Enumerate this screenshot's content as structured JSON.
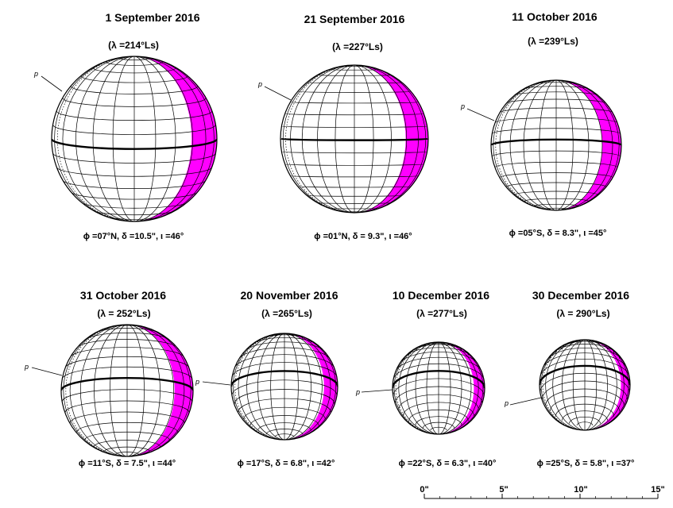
{
  "panels": [
    {
      "date": "1 September 2016",
      "ls": "(λ =214°Ls)",
      "params": "ϕ =07°N,  δ =10.5\",  ι =46°",
      "p_label": "p",
      "diameter_arcsec": 10.5,
      "phase_deg": 46,
      "tilt_deg": 7
    },
    {
      "date": "21 September 2016",
      "ls": "(λ =227°Ls)",
      "params": "ϕ =01°N,  δ =  9.3\",  ι =46°",
      "p_label": "p",
      "diameter_arcsec": 9.3,
      "phase_deg": 46,
      "tilt_deg": 1
    },
    {
      "date": "11 October 2016",
      "ls": "(λ =239°Ls)",
      "params": "ϕ =05°S,  δ =  8.3\",  ι =45°",
      "p_label": "p",
      "diameter_arcsec": 8.3,
      "phase_deg": 45,
      "tilt_deg": -5
    },
    {
      "date": "31 October 2016",
      "ls": "(λ = 252°Ls)",
      "params": "ϕ =11°S,  δ =  7.5\",  ι =44°",
      "p_label": "p",
      "diameter_arcsec": 7.5,
      "phase_deg": 44,
      "tilt_deg": -11
    },
    {
      "date": "20 November 2016",
      "ls": "(λ =265°Ls)",
      "params": "ϕ =17°S,  δ = 6.8\",  ι =42°",
      "p_label": "p",
      "diameter_arcsec": 6.8,
      "phase_deg": 42,
      "tilt_deg": -17
    },
    {
      "date": "10 December 2016",
      "ls": "(λ =277°Ls)",
      "params": "ϕ =22°S,  δ =  6.3\",  ι =40°",
      "p_label": "p",
      "diameter_arcsec": 6.3,
      "phase_deg": 40,
      "tilt_deg": -22
    },
    {
      "date": "30 December 2016",
      "ls": "(λ = 290°Ls)",
      "params": "ϕ =25°S,  δ =  5.8\",  ι =37°",
      "p_label": "p",
      "diameter_arcsec": 5.8,
      "phase_deg": 37,
      "tilt_deg": -25
    }
  ],
  "scale_bar": {
    "labels": [
      "0\"",
      "5\"",
      "10\"",
      "15\""
    ],
    "values": [
      0,
      5,
      10,
      15
    ]
  },
  "colors": {
    "shadow": "#ff00ff",
    "grid": "#000000",
    "equator": "#000000"
  }
}
